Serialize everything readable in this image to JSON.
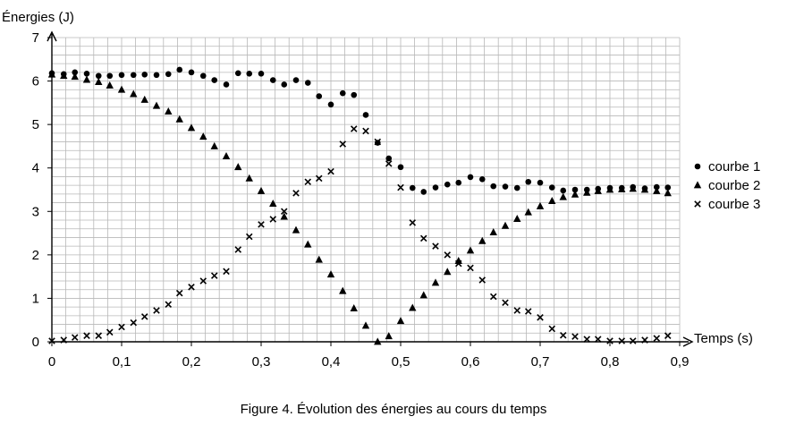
{
  "chart_data": {
    "type": "scatter",
    "caption": "Figure 4. Évolution des énergies au cours du temps",
    "xlabel": "Temps (s)",
    "ylabel": "Énergies (J)",
    "xlim": [
      0,
      0.9
    ],
    "ylim": [
      0,
      7
    ],
    "x_ticks": [
      "0",
      "0,1",
      "0,2",
      "0,3",
      "0,4",
      "0,5",
      "0,6",
      "0,7",
      "0,8",
      "0,9"
    ],
    "y_ticks": [
      "0",
      "1",
      "2",
      "3",
      "4",
      "5",
      "6",
      "7"
    ],
    "grid": true,
    "legend_position": "right",
    "series": [
      {
        "name": "courbe 1",
        "marker": "circle",
        "points": [
          [
            0,
            6.18
          ],
          [
            0.017,
            6.16
          ],
          [
            0.033,
            6.2
          ],
          [
            0.05,
            6.17
          ],
          [
            0.067,
            6.12
          ],
          [
            0.083,
            6.12
          ],
          [
            0.1,
            6.14
          ],
          [
            0.117,
            6.14
          ],
          [
            0.133,
            6.15
          ],
          [
            0.15,
            6.14
          ],
          [
            0.167,
            6.16
          ],
          [
            0.183,
            6.26
          ],
          [
            0.2,
            6.2
          ],
          [
            0.217,
            6.12
          ],
          [
            0.233,
            6.02
          ],
          [
            0.25,
            5.92
          ],
          [
            0.267,
            6.18
          ],
          [
            0.283,
            6.17
          ],
          [
            0.3,
            6.17
          ],
          [
            0.317,
            6.02
          ],
          [
            0.333,
            5.92
          ],
          [
            0.35,
            6.02
          ],
          [
            0.367,
            5.96
          ],
          [
            0.383,
            5.65
          ],
          [
            0.4,
            5.46
          ],
          [
            0.417,
            5.72
          ],
          [
            0.433,
            5.68
          ],
          [
            0.45,
            5.22
          ],
          [
            0.467,
            4.58
          ],
          [
            0.483,
            4.22
          ],
          [
            0.5,
            4.02
          ],
          [
            0.517,
            3.54
          ],
          [
            0.533,
            3.45
          ],
          [
            0.55,
            3.55
          ],
          [
            0.567,
            3.62
          ],
          [
            0.583,
            3.66
          ],
          [
            0.6,
            3.79
          ],
          [
            0.617,
            3.74
          ],
          [
            0.633,
            3.58
          ],
          [
            0.65,
            3.57
          ],
          [
            0.667,
            3.54
          ],
          [
            0.683,
            3.68
          ],
          [
            0.7,
            3.66
          ],
          [
            0.717,
            3.55
          ],
          [
            0.733,
            3.48
          ],
          [
            0.75,
            3.5
          ],
          [
            0.767,
            3.5
          ],
          [
            0.783,
            3.52
          ],
          [
            0.8,
            3.54
          ],
          [
            0.817,
            3.54
          ],
          [
            0.833,
            3.56
          ],
          [
            0.85,
            3.53
          ],
          [
            0.867,
            3.56
          ],
          [
            0.883,
            3.55
          ]
        ]
      },
      {
        "name": "courbe 2",
        "marker": "triangle",
        "points": [
          [
            0,
            6.15
          ],
          [
            0.017,
            6.12
          ],
          [
            0.033,
            6.1
          ],
          [
            0.05,
            6.03
          ],
          [
            0.067,
            5.98
          ],
          [
            0.083,
            5.9
          ],
          [
            0.1,
            5.8
          ],
          [
            0.117,
            5.7
          ],
          [
            0.133,
            5.57
          ],
          [
            0.15,
            5.43
          ],
          [
            0.167,
            5.3
          ],
          [
            0.183,
            5.12
          ],
          [
            0.2,
            4.92
          ],
          [
            0.217,
            4.72
          ],
          [
            0.233,
            4.5
          ],
          [
            0.25,
            4.27
          ],
          [
            0.267,
            4.02
          ],
          [
            0.283,
            3.76
          ],
          [
            0.3,
            3.47
          ],
          [
            0.317,
            3.18
          ],
          [
            0.333,
            2.88
          ],
          [
            0.35,
            2.57
          ],
          [
            0.367,
            2.24
          ],
          [
            0.383,
            1.89
          ],
          [
            0.4,
            1.55
          ],
          [
            0.417,
            1.17
          ],
          [
            0.433,
            0.77
          ],
          [
            0.45,
            0.37
          ],
          [
            0.467,
            0
          ],
          [
            0.483,
            0.13
          ],
          [
            0.5,
            0.48
          ],
          [
            0.517,
            0.78
          ],
          [
            0.533,
            1.07
          ],
          [
            0.55,
            1.36
          ],
          [
            0.567,
            1.61
          ],
          [
            0.583,
            1.86
          ],
          [
            0.6,
            2.1
          ],
          [
            0.617,
            2.32
          ],
          [
            0.633,
            2.52
          ],
          [
            0.65,
            2.67
          ],
          [
            0.667,
            2.83
          ],
          [
            0.683,
            2.98
          ],
          [
            0.7,
            3.12
          ],
          [
            0.717,
            3.24
          ],
          [
            0.733,
            3.33
          ],
          [
            0.75,
            3.39
          ],
          [
            0.767,
            3.43
          ],
          [
            0.783,
            3.47
          ],
          [
            0.8,
            3.5
          ],
          [
            0.817,
            3.51
          ],
          [
            0.833,
            3.52
          ],
          [
            0.85,
            3.5
          ],
          [
            0.867,
            3.47
          ],
          [
            0.883,
            3.42
          ]
        ]
      },
      {
        "name": "courbe 3",
        "marker": "x",
        "points": [
          [
            0,
            0.02
          ],
          [
            0.017,
            0.04
          ],
          [
            0.033,
            0.1
          ],
          [
            0.05,
            0.14
          ],
          [
            0.067,
            0.14
          ],
          [
            0.083,
            0.22
          ],
          [
            0.1,
            0.34
          ],
          [
            0.117,
            0.44
          ],
          [
            0.133,
            0.58
          ],
          [
            0.15,
            0.72
          ],
          [
            0.167,
            0.86
          ],
          [
            0.183,
            1.12
          ],
          [
            0.2,
            1.26
          ],
          [
            0.217,
            1.4
          ],
          [
            0.233,
            1.52
          ],
          [
            0.25,
            1.62
          ],
          [
            0.267,
            2.12
          ],
          [
            0.283,
            2.42
          ],
          [
            0.3,
            2.7
          ],
          [
            0.317,
            2.82
          ],
          [
            0.333,
            3.0
          ],
          [
            0.35,
            3.42
          ],
          [
            0.367,
            3.68
          ],
          [
            0.383,
            3.76
          ],
          [
            0.4,
            3.92
          ],
          [
            0.417,
            4.55
          ],
          [
            0.433,
            4.9
          ],
          [
            0.45,
            4.85
          ],
          [
            0.467,
            4.6
          ],
          [
            0.483,
            4.1
          ],
          [
            0.5,
            3.55
          ],
          [
            0.517,
            2.74
          ],
          [
            0.533,
            2.38
          ],
          [
            0.55,
            2.2
          ],
          [
            0.567,
            2.0
          ],
          [
            0.583,
            1.8
          ],
          [
            0.6,
            1.7
          ],
          [
            0.617,
            1.42
          ],
          [
            0.633,
            1.04
          ],
          [
            0.65,
            0.9
          ],
          [
            0.667,
            0.72
          ],
          [
            0.683,
            0.7
          ],
          [
            0.7,
            0.56
          ],
          [
            0.717,
            0.3
          ],
          [
            0.733,
            0.15
          ],
          [
            0.75,
            0.12
          ],
          [
            0.767,
            0.06
          ],
          [
            0.783,
            0.06
          ],
          [
            0.8,
            0.02
          ],
          [
            0.817,
            0.02
          ],
          [
            0.833,
            0.02
          ],
          [
            0.85,
            0.04
          ],
          [
            0.867,
            0.08
          ],
          [
            0.883,
            0.14
          ]
        ]
      }
    ]
  }
}
